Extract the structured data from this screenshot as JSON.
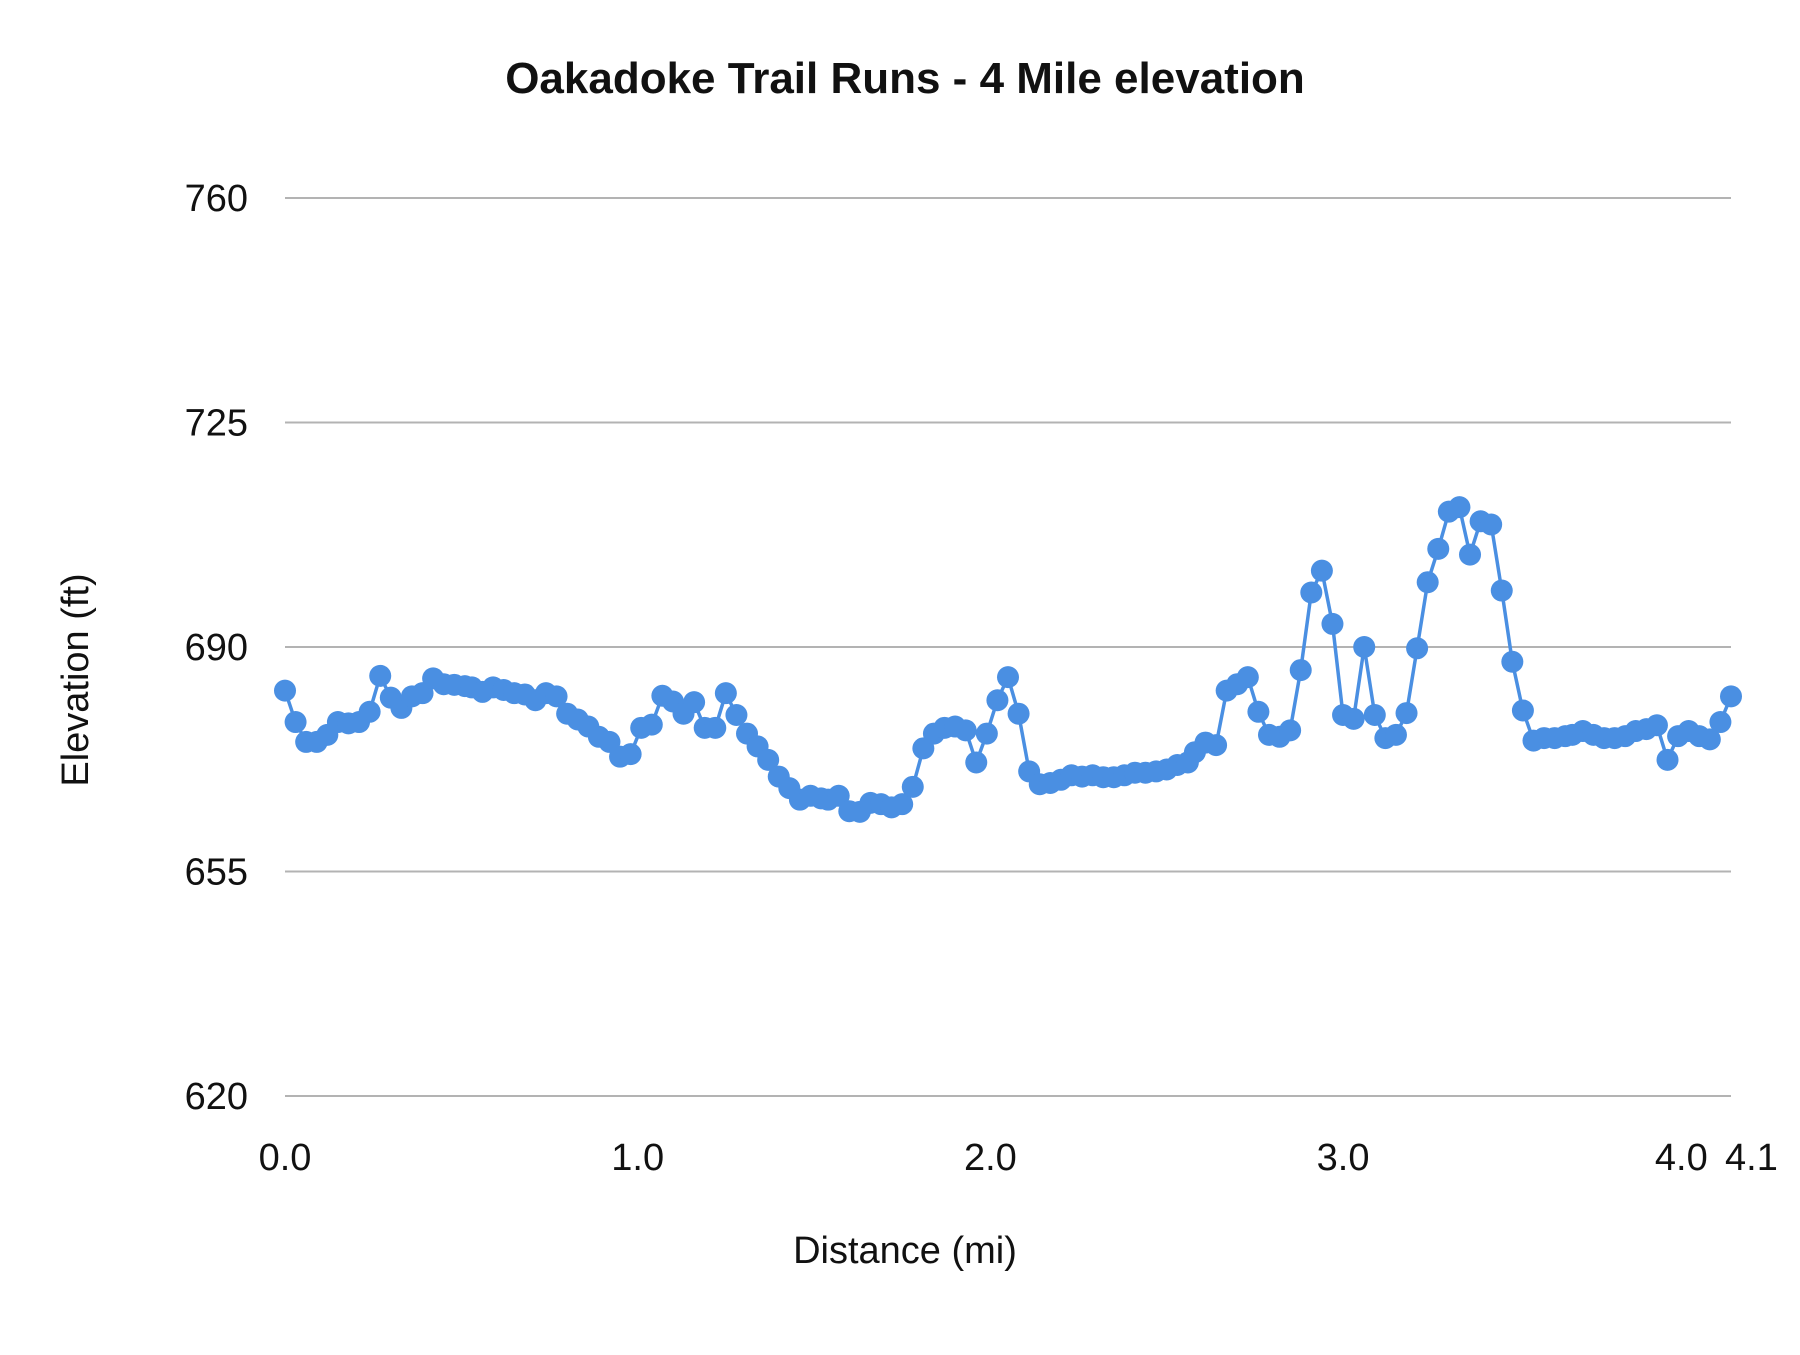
{
  "chart_data": {
    "type": "line",
    "title": "Oakadoke Trail Runs - 4 Mile elevation",
    "xlabel": "Distance (mi)",
    "ylabel": "Elevation (ft)",
    "xlim": [
      0,
      4.1
    ],
    "ylim": [
      620,
      760
    ],
    "x_ticks": [
      "0.0",
      "1.0",
      "2.0",
      "3.0",
      "4.0",
      "4.1"
    ],
    "x_tick_values": [
      0,
      1,
      2,
      3,
      4,
      4.1
    ],
    "y_ticks": [
      "620",
      "655",
      "690",
      "725",
      "760"
    ],
    "y_tick_values": [
      620,
      655,
      690,
      725,
      760
    ],
    "grid": "horizontal",
    "markers": true,
    "series_color": "#4a8fe2",
    "grid_color": "#b3b3b3",
    "x": [
      0,
      0.03,
      0.06,
      0.09,
      0.12,
      0.15,
      0.18,
      0.21,
      0.24,
      0.27,
      0.3,
      0.33,
      0.36,
      0.39,
      0.42,
      0.45,
      0.48,
      0.51,
      0.53,
      0.56,
      0.59,
      0.62,
      0.65,
      0.68,
      0.71,
      0.74,
      0.77,
      0.8,
      0.83,
      0.86,
      0.89,
      0.92,
      0.95,
      0.98,
      1.01,
      1.04,
      1.07,
      1.1,
      1.13,
      1.16,
      1.19,
      1.22,
      1.25,
      1.28,
      1.31,
      1.34,
      1.37,
      1.4,
      1.43,
      1.46,
      1.49,
      1.52,
      1.54,
      1.57,
      1.6,
      1.63,
      1.66,
      1.69,
      1.72,
      1.75,
      1.78,
      1.81,
      1.84,
      1.87,
      1.9,
      1.93,
      1.96,
      1.99,
      2.02,
      2.05,
      2.08,
      2.11,
      2.14,
      2.17,
      2.2,
      2.23,
      2.26,
      2.29,
      2.32,
      2.35,
      2.38,
      2.41,
      2.44,
      2.47,
      2.5,
      2.53,
      2.56,
      2.58,
      2.61,
      2.64,
      2.67,
      2.7,
      2.73,
      2.76,
      2.79,
      2.82,
      2.85,
      2.88,
      2.91,
      2.94,
      2.97,
      3.0,
      3.03,
      3.06,
      3.09,
      3.12,
      3.15,
      3.18,
      3.21,
      3.24,
      3.27,
      3.3,
      3.33,
      3.36,
      3.39,
      3.42,
      3.45,
      3.48,
      3.51,
      3.54,
      3.57,
      3.6,
      3.63,
      3.65,
      3.68,
      3.71,
      3.74,
      3.77,
      3.8,
      3.83,
      3.86,
      3.89,
      3.92,
      3.95,
      3.98,
      4.01,
      4.04,
      4.07,
      4.1
    ],
    "y": [
      683.2,
      678.3,
      675.2,
      675.2,
      676.3,
      678.3,
      678.1,
      678.3,
      679.9,
      685.5,
      682.1,
      680.5,
      682.3,
      682.8,
      685.1,
      684.2,
      684.1,
      683.9,
      683.7,
      683.0,
      683.7,
      683.3,
      682.8,
      682.6,
      681.7,
      682.8,
      682.3,
      679.6,
      678.7,
      677.6,
      676.0,
      675.2,
      672.9,
      673.3,
      677.4,
      677.9,
      682.4,
      681.5,
      679.6,
      681.4,
      677.4,
      677.4,
      682.8,
      679.4,
      676.5,
      674.5,
      672.4,
      669.8,
      668.0,
      666.2,
      666.8,
      666.4,
      666.2,
      666.8,
      664.4,
      664.3,
      665.7,
      665.5,
      665.0,
      665.5,
      668.2,
      674.2,
      676.5,
      677.4,
      677.6,
      677.0,
      672.0,
      676.5,
      681.7,
      685.3,
      679.6,
      670.6,
      668.6,
      668.8,
      669.3,
      670.0,
      669.8,
      670.0,
      669.7,
      669.7,
      670.0,
      670.4,
      670.4,
      670.6,
      670.9,
      671.6,
      672.0,
      673.6,
      675.1,
      674.7,
      683.2,
      684.2,
      685.3,
      679.9,
      676.3,
      676.0,
      677.0,
      686.4,
      698.5,
      701.9,
      693.6,
      679.4,
      678.8,
      690.0,
      679.4,
      675.8,
      676.3,
      679.7,
      689.8,
      700.1,
      705.3,
      711.1,
      711.8,
      704.4,
      709.6,
      709.1,
      698.8,
      687.7,
      680.1,
      675.4,
      675.8,
      675.8,
      676.1,
      676.3,
      676.9,
      676.3,
      675.8,
      675.8,
      676.1,
      676.9,
      677.2,
      677.8,
      672.4,
      676.1,
      676.9,
      676.1,
      675.6,
      678.3,
      682.3
    ]
  }
}
